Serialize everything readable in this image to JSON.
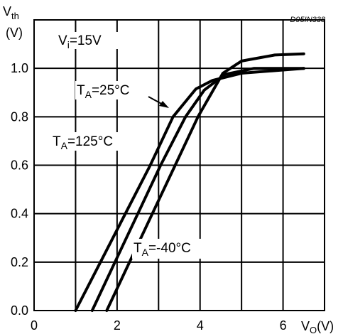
{
  "chart_data": {
    "type": "line",
    "code": "D95IN338",
    "ylabel": {
      "main": "V",
      "sub": "th",
      "unit": "(V)"
    },
    "xlabel": {
      "main": "V",
      "sub": "O",
      "unit": "(V)"
    },
    "xlim": [
      0,
      7
    ],
    "ylim": [
      0,
      1.2
    ],
    "xticks": [
      "0",
      "2",
      "4",
      "6"
    ],
    "xtick_values": [
      0,
      2,
      4,
      6
    ],
    "yticks": [
      "0.0",
      "0.2",
      "0.4",
      "0.6",
      "0.8",
      "1.0"
    ],
    "ytick_values": [
      0.0,
      0.2,
      0.4,
      0.6,
      0.8,
      1.0
    ],
    "grid": true,
    "condition": {
      "main": "V",
      "sub": "i",
      "rest": "=15V"
    },
    "series": [
      {
        "label": {
          "main": "T",
          "sub": "A",
          "rest": "=125°C"
        },
        "points": [
          [
            1.0,
            0.0
          ],
          [
            1.6,
            0.2
          ],
          [
            2.2,
            0.4
          ],
          [
            2.8,
            0.6
          ],
          [
            3.35,
            0.8
          ],
          [
            3.9,
            0.915
          ],
          [
            4.3,
            0.95
          ],
          [
            5.0,
            0.98
          ],
          [
            6.5,
            1.0
          ]
        ]
      },
      {
        "label": {
          "main": "T",
          "sub": "A",
          "rest": "=25°C"
        },
        "points": [
          [
            1.4,
            0.0
          ],
          [
            1.95,
            0.2
          ],
          [
            2.5,
            0.4
          ],
          [
            3.05,
            0.6
          ],
          [
            3.65,
            0.8
          ],
          [
            4.1,
            0.91
          ],
          [
            4.6,
            0.975
          ],
          [
            5.3,
            1.0
          ],
          [
            6.5,
            1.0
          ]
        ]
      },
      {
        "label": {
          "main": "T",
          "sub": "A",
          "rest": "=-40°C"
        },
        "points": [
          [
            1.75,
            0.0
          ],
          [
            2.3,
            0.2
          ],
          [
            2.85,
            0.4
          ],
          [
            3.4,
            0.6
          ],
          [
            3.95,
            0.8
          ],
          [
            4.55,
            0.98
          ],
          [
            5.0,
            1.03
          ],
          [
            5.8,
            1.055
          ],
          [
            6.5,
            1.06
          ]
        ]
      }
    ]
  }
}
